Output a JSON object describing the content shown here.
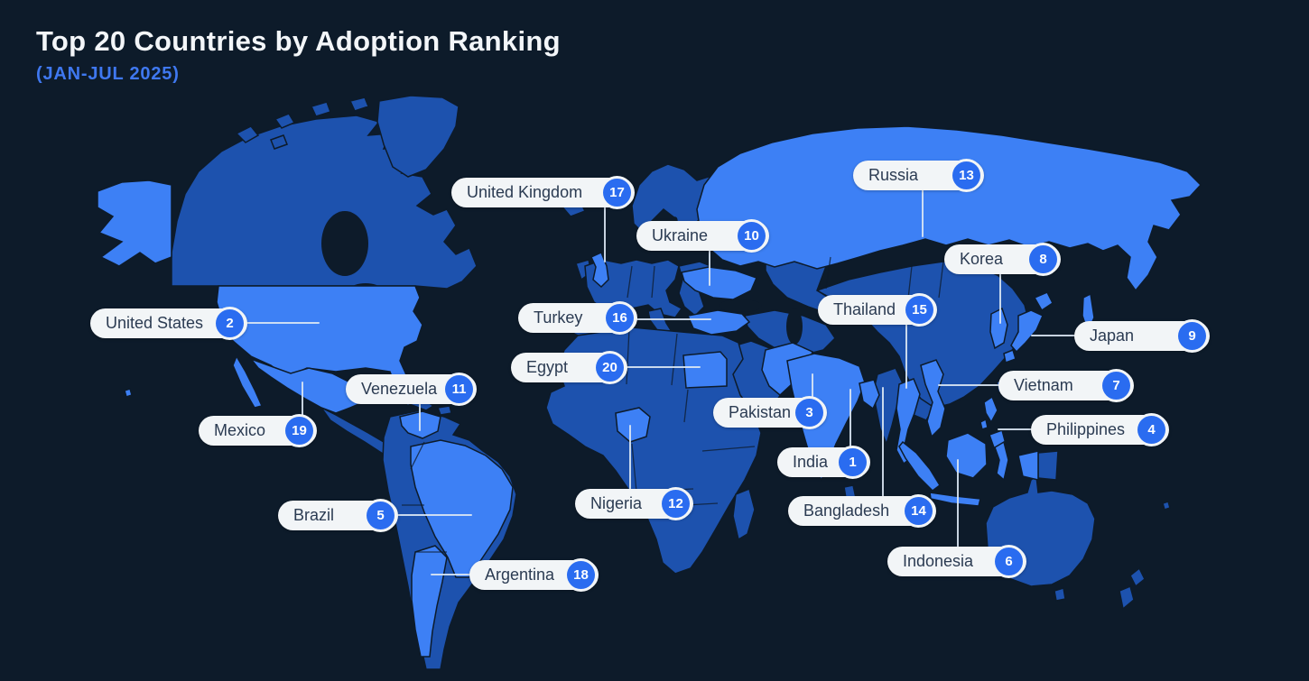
{
  "title": "Top 20 Countries by Adoption Ranking",
  "subtitle": "(JAN-JUL 2025)",
  "colors": {
    "background": "#0d1b2a",
    "land": "#1d52ae",
    "highlighted_country": "#3d80f5",
    "pill_background": "#f2f5f7",
    "pill_text": "#2b3b52",
    "badge_background": "#2a6cf0",
    "badge_text": "#ffffff",
    "connector_line": "#dce8f4",
    "title_text": "#f3f6f9",
    "subtitle_text": "#3f78f0"
  },
  "chart_data": {
    "type": "map",
    "title": "Top 20 Countries by Adoption Ranking",
    "subtitle": "(JAN-JUL 2025)",
    "value_meaning": "adoption ranking (1 = highest)",
    "countries": [
      {
        "name": "India",
        "rank": 1
      },
      {
        "name": "United States",
        "rank": 2
      },
      {
        "name": "Pakistan",
        "rank": 3
      },
      {
        "name": "Philippines",
        "rank": 4
      },
      {
        "name": "Brazil",
        "rank": 5
      },
      {
        "name": "Indonesia",
        "rank": 6
      },
      {
        "name": "Vietnam",
        "rank": 7
      },
      {
        "name": "Korea",
        "rank": 8
      },
      {
        "name": "Japan",
        "rank": 9
      },
      {
        "name": "Ukraine",
        "rank": 10
      },
      {
        "name": "Venezuela",
        "rank": 11
      },
      {
        "name": "Nigeria",
        "rank": 12
      },
      {
        "name": "Russia",
        "rank": 13
      },
      {
        "name": "Bangladesh",
        "rank": 14
      },
      {
        "name": "Thailand",
        "rank": 15
      },
      {
        "name": "Turkey",
        "rank": 16
      },
      {
        "name": "United Kingdom",
        "rank": 17
      },
      {
        "name": "Argentina",
        "rank": 18
      },
      {
        "name": "Mexico",
        "rank": 19
      },
      {
        "name": "Egypt",
        "rank": 20
      }
    ]
  }
}
